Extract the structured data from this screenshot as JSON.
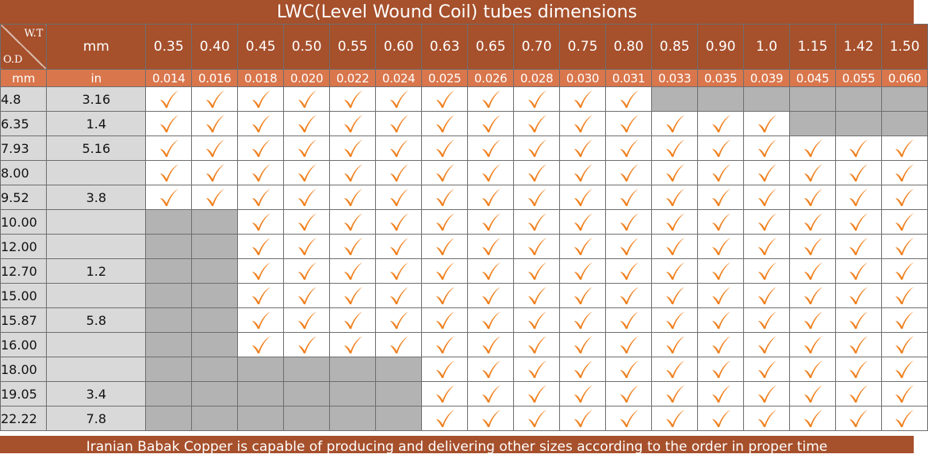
{
  "title": "LWC(Level Wound Coil) tubes dimensions",
  "footer": "Iranian Babak Copper is capable of producing and delivering other sizes according to the order in proper time",
  "corner": {
    "wt": "W.T",
    "od": "O.D"
  },
  "units": {
    "header_mm": "mm",
    "sub_mm": "mm",
    "sub_in": "in"
  },
  "thickness_mm": [
    "0.35",
    "0.40",
    "0.45",
    "0.50",
    "0.55",
    "0.60",
    "0.63",
    "0.65",
    "0.70",
    "0.75",
    "0.80",
    "0.85",
    "0.90",
    "1.0",
    "1.15",
    "1.42",
    "1.50"
  ],
  "thickness_in": [
    "0.014",
    "0.016",
    "0.018",
    "0.020",
    "0.022",
    "0.024",
    "0.025",
    "0.026",
    "0.028",
    "0.030",
    "0.031",
    "0.033",
    "0.035",
    "0.039",
    "0.045",
    "0.055",
    "0.060"
  ],
  "rows": [
    {
      "od_mm": "4.8",
      "od_in": "3.16",
      "avail": [
        1,
        1,
        1,
        1,
        1,
        1,
        1,
        1,
        1,
        1,
        1,
        0,
        0,
        0,
        0,
        0,
        0
      ]
    },
    {
      "od_mm": "6.35",
      "od_in": "1.4",
      "avail": [
        1,
        1,
        1,
        1,
        1,
        1,
        1,
        1,
        1,
        1,
        1,
        1,
        1,
        1,
        0,
        0,
        0
      ]
    },
    {
      "od_mm": "7.93",
      "od_in": "5.16",
      "avail": [
        1,
        1,
        1,
        1,
        1,
        1,
        1,
        1,
        1,
        1,
        1,
        1,
        1,
        1,
        1,
        1,
        1
      ]
    },
    {
      "od_mm": "8.00",
      "od_in": "",
      "avail": [
        1,
        1,
        1,
        1,
        1,
        1,
        1,
        1,
        1,
        1,
        1,
        1,
        1,
        1,
        1,
        1,
        1
      ]
    },
    {
      "od_mm": "9.52",
      "od_in": "3.8",
      "avail": [
        1,
        1,
        1,
        1,
        1,
        1,
        1,
        1,
        1,
        1,
        1,
        1,
        1,
        1,
        1,
        1,
        1
      ]
    },
    {
      "od_mm": "10.00",
      "od_in": "",
      "avail": [
        0,
        0,
        1,
        1,
        1,
        1,
        1,
        1,
        1,
        1,
        1,
        1,
        1,
        1,
        1,
        1,
        1
      ]
    },
    {
      "od_mm": "12.00",
      "od_in": "",
      "avail": [
        0,
        0,
        1,
        1,
        1,
        1,
        1,
        1,
        1,
        1,
        1,
        1,
        1,
        1,
        1,
        1,
        1
      ]
    },
    {
      "od_mm": "12.70",
      "od_in": "1.2",
      "avail": [
        0,
        0,
        1,
        1,
        1,
        1,
        1,
        1,
        1,
        1,
        1,
        1,
        1,
        1,
        1,
        1,
        1
      ]
    },
    {
      "od_mm": "15.00",
      "od_in": "",
      "avail": [
        0,
        0,
        1,
        1,
        1,
        1,
        1,
        1,
        1,
        1,
        1,
        1,
        1,
        1,
        1,
        1,
        1
      ]
    },
    {
      "od_mm": "15.87",
      "od_in": "5.8",
      "avail": [
        0,
        0,
        1,
        1,
        1,
        1,
        1,
        1,
        1,
        1,
        1,
        1,
        1,
        1,
        1,
        1,
        1
      ]
    },
    {
      "od_mm": "16.00",
      "od_in": "",
      "avail": [
        0,
        0,
        1,
        1,
        1,
        1,
        1,
        1,
        1,
        1,
        1,
        1,
        1,
        1,
        1,
        1,
        1
      ]
    },
    {
      "od_mm": "18.00",
      "od_in": "",
      "avail": [
        0,
        0,
        0,
        0,
        0,
        0,
        1,
        1,
        1,
        1,
        1,
        1,
        1,
        1,
        1,
        1,
        1
      ]
    },
    {
      "od_mm": "19.05",
      "od_in": "3.4",
      "avail": [
        0,
        0,
        0,
        0,
        0,
        0,
        1,
        1,
        1,
        1,
        1,
        1,
        1,
        1,
        1,
        1,
        1
      ]
    },
    {
      "od_mm": "22.22",
      "od_in": "7.8",
      "avail": [
        0,
        0,
        0,
        0,
        0,
        0,
        1,
        1,
        1,
        1,
        1,
        1,
        1,
        1,
        1,
        1,
        1
      ]
    }
  ],
  "colors": {
    "header": "#a6502c",
    "subheader": "#d9764c",
    "check": "#f0801e",
    "unavailable": "#b3b3b3",
    "label_bg": "#d9d9d9"
  }
}
